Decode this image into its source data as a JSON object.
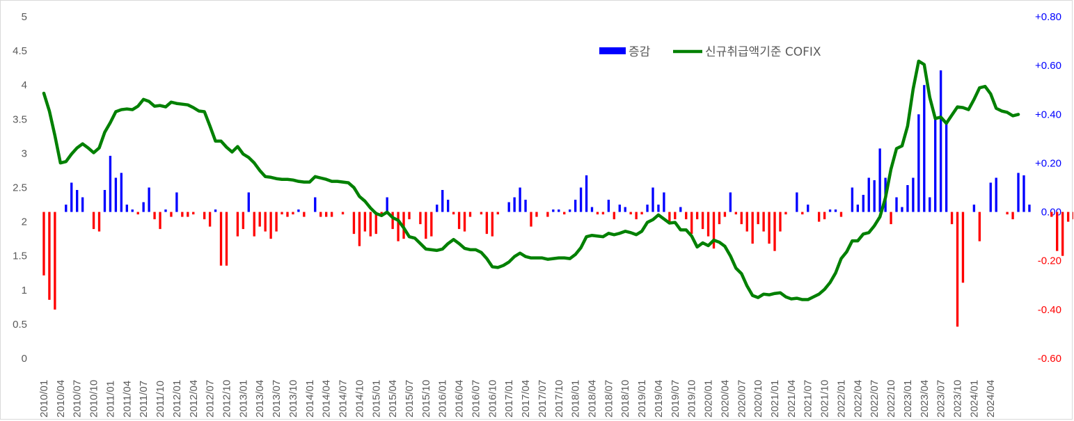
{
  "chart_data": {
    "type": "bar+line",
    "legend": {
      "placement": "top-right",
      "entries": [
        "증감",
        "신규취급액기준 COFIX"
      ]
    },
    "colors": {
      "bar_positive": "#0000ff",
      "bar_negative": "#ff0000",
      "line": "#008000",
      "right_axis_positive": "#0000ff",
      "right_axis_negative": "#ff0000",
      "left_axis": "#595959"
    },
    "left_axis": {
      "min": 0,
      "max": 5,
      "ticks": [
        "0",
        "0.5",
        "1",
        "1.5",
        "2",
        "2.5",
        "3",
        "3.5",
        "4",
        "4.5",
        "5"
      ]
    },
    "right_axis": {
      "min": -0.6,
      "max": 0.8,
      "ticks": [
        "-0.60",
        "-0.40",
        "-0.20",
        "0.00",
        "+0.20",
        "+0.40",
        "+0.60",
        "+0.80"
      ]
    },
    "x_labels": [
      "2010/01",
      "2010/04",
      "2010/07",
      "2010/10",
      "2011/01",
      "2011/04",
      "2011/07",
      "2011/10",
      "2012/01",
      "2012/04",
      "2012/07",
      "2012/10",
      "2013/01",
      "2013/04",
      "2013/07",
      "2013/10",
      "2014/01",
      "2014/04",
      "2014/07",
      "2014/10",
      "2015/01",
      "2015/04",
      "2015/07",
      "2015/10",
      "2016/01",
      "2016/04",
      "2016/07",
      "2016/10",
      "2017/01",
      "2017/04",
      "2017/07",
      "2017/10",
      "2018/01",
      "2018/04",
      "2018/07",
      "2018/10",
      "2019/01",
      "2019/04",
      "2019/07",
      "2019/10",
      "2020/01",
      "2020/04",
      "2020/07",
      "2020/10",
      "2021/01",
      "2021/04",
      "2021/07",
      "2021/10",
      "2022/01",
      "2022/04",
      "2022/07",
      "2022/10",
      "2023/01",
      "2023/04",
      "2023/07",
      "2023/10",
      "2024/01",
      "2024/04"
    ],
    "series": [
      {
        "name": "증감",
        "axis": "right",
        "type": "bar",
        "values": [
          -0.26,
          -0.36,
          -0.4,
          0,
          0.03,
          0.12,
          0.09,
          0.06,
          0,
          -0.07,
          -0.08,
          0.09,
          0.23,
          0.14,
          0.16,
          0.03,
          0.01,
          -0.01,
          0.04,
          0.1,
          -0.03,
          -0.07,
          0.01,
          -0.02,
          0.08,
          -0.02,
          -0.02,
          -0.01,
          0,
          -0.03,
          -0.06,
          0.01,
          -0.22,
          -0.22,
          0,
          -0.1,
          -0.07,
          0.08,
          -0.1,
          -0.06,
          -0.08,
          -0.11,
          -0.08,
          -0.01,
          -0.02,
          -0.01,
          0.01,
          -0.02,
          0,
          0.06,
          -0.02,
          -0.02,
          -0.02,
          0,
          -0.01,
          0,
          -0.09,
          -0.14,
          -0.08,
          -0.1,
          -0.09,
          -0.02,
          0.06,
          -0.07,
          -0.12,
          -0.11,
          -0.03,
          0,
          -0.05,
          -0.11,
          -0.1,
          0.03,
          0.09,
          0.05,
          -0.01,
          -0.07,
          -0.08,
          -0.02,
          0,
          -0.01,
          -0.09,
          -0.1,
          -0.01,
          0,
          0.04,
          0.06,
          0.1,
          0.05,
          -0.06,
          -0.02,
          0,
          -0.02,
          0.01,
          0.01,
          -0.01,
          0.01,
          0.05,
          0.1,
          0.15,
          0.02,
          -0.01,
          -0.01,
          0.05,
          -0.03,
          0.03,
          0.02,
          -0.01,
          -0.03,
          -0.01,
          0.03,
          0.1,
          0.03,
          0.08,
          -0.05,
          -0.03,
          0.02,
          -0.03,
          -0.09,
          -0.03,
          -0.07,
          -0.1,
          -0.15,
          -0.05,
          -0.02,
          0.08,
          -0.01,
          -0.05,
          -0.08,
          -0.13,
          -0.05,
          -0.08,
          -0.13,
          -0.16,
          -0.08,
          -0.01,
          0,
          0.08,
          -0.01,
          0.03,
          0,
          -0.04,
          -0.03,
          0.01,
          0.01,
          -0.02,
          0,
          0.1,
          0.03,
          0.07,
          0.14,
          0.13,
          0.26,
          0.14,
          -0.05,
          0.06,
          0.02,
          0.11,
          0.14,
          0.4,
          0.52,
          0.06,
          0.38,
          0.58,
          0.36,
          -0.05,
          -0.47,
          -0.29,
          0,
          0.03,
          -0.12,
          0,
          0.12,
          0.14,
          0,
          -0.01,
          -0.03,
          0.16,
          0.15,
          0.03,
          0,
          0,
          0,
          -0.02,
          -0.16,
          -0.18,
          -0.04,
          -0.03,
          -0.05,
          0.02
        ]
      },
      {
        "name": "신규취급액기준 COFIX",
        "axis": "left",
        "type": "line",
        "values": [
          3.88,
          3.62,
          3.26,
          2.86,
          2.88,
          2.99,
          3.08,
          3.14,
          3.08,
          3.01,
          3.08,
          3.31,
          3.45,
          3.61,
          3.64,
          3.65,
          3.64,
          3.69,
          3.79,
          3.76,
          3.69,
          3.7,
          3.68,
          3.75,
          3.73,
          3.72,
          3.71,
          3.67,
          3.62,
          3.61,
          3.4,
          3.18,
          3.18,
          3.09,
          3.02,
          3.1,
          2.99,
          2.94,
          2.86,
          2.75,
          2.66,
          2.65,
          2.63,
          2.62,
          2.62,
          2.61,
          2.59,
          2.58,
          2.58,
          2.66,
          2.64,
          2.62,
          2.59,
          2.59,
          2.58,
          2.57,
          2.5,
          2.37,
          2.3,
          2.2,
          2.12,
          2.09,
          2.14,
          2.06,
          2.02,
          1.91,
          1.78,
          1.76,
          1.68,
          1.6,
          1.59,
          1.58,
          1.6,
          1.68,
          1.74,
          1.68,
          1.61,
          1.59,
          1.59,
          1.55,
          1.46,
          1.34,
          1.33,
          1.36,
          1.41,
          1.49,
          1.54,
          1.49,
          1.47,
          1.47,
          1.47,
          1.45,
          1.46,
          1.47,
          1.47,
          1.46,
          1.52,
          1.62,
          1.78,
          1.8,
          1.79,
          1.78,
          1.83,
          1.81,
          1.83,
          1.86,
          1.84,
          1.81,
          1.86,
          1.99,
          2.03,
          2.1,
          2.04,
          1.98,
          1.99,
          1.88,
          1.88,
          1.79,
          1.63,
          1.69,
          1.65,
          1.73,
          1.7,
          1.64,
          1.5,
          1.32,
          1.24,
          1.06,
          0.92,
          0.89,
          0.94,
          0.93,
          0.95,
          0.96,
          0.9,
          0.87,
          0.88,
          0.86,
          0.86,
          0.9,
          0.94,
          1.01,
          1.11,
          1.25,
          1.46,
          1.56,
          1.72,
          1.72,
          1.82,
          1.84,
          1.94,
          2.07,
          2.35,
          2.77,
          3.07,
          3.11,
          3.4,
          3.94,
          4.35,
          4.3,
          3.82,
          3.51,
          3.53,
          3.44,
          3.56,
          3.68,
          3.67,
          3.64,
          3.79,
          3.96,
          3.98,
          3.87,
          3.66,
          3.62,
          3.6,
          3.55,
          3.57
        ]
      }
    ]
  }
}
